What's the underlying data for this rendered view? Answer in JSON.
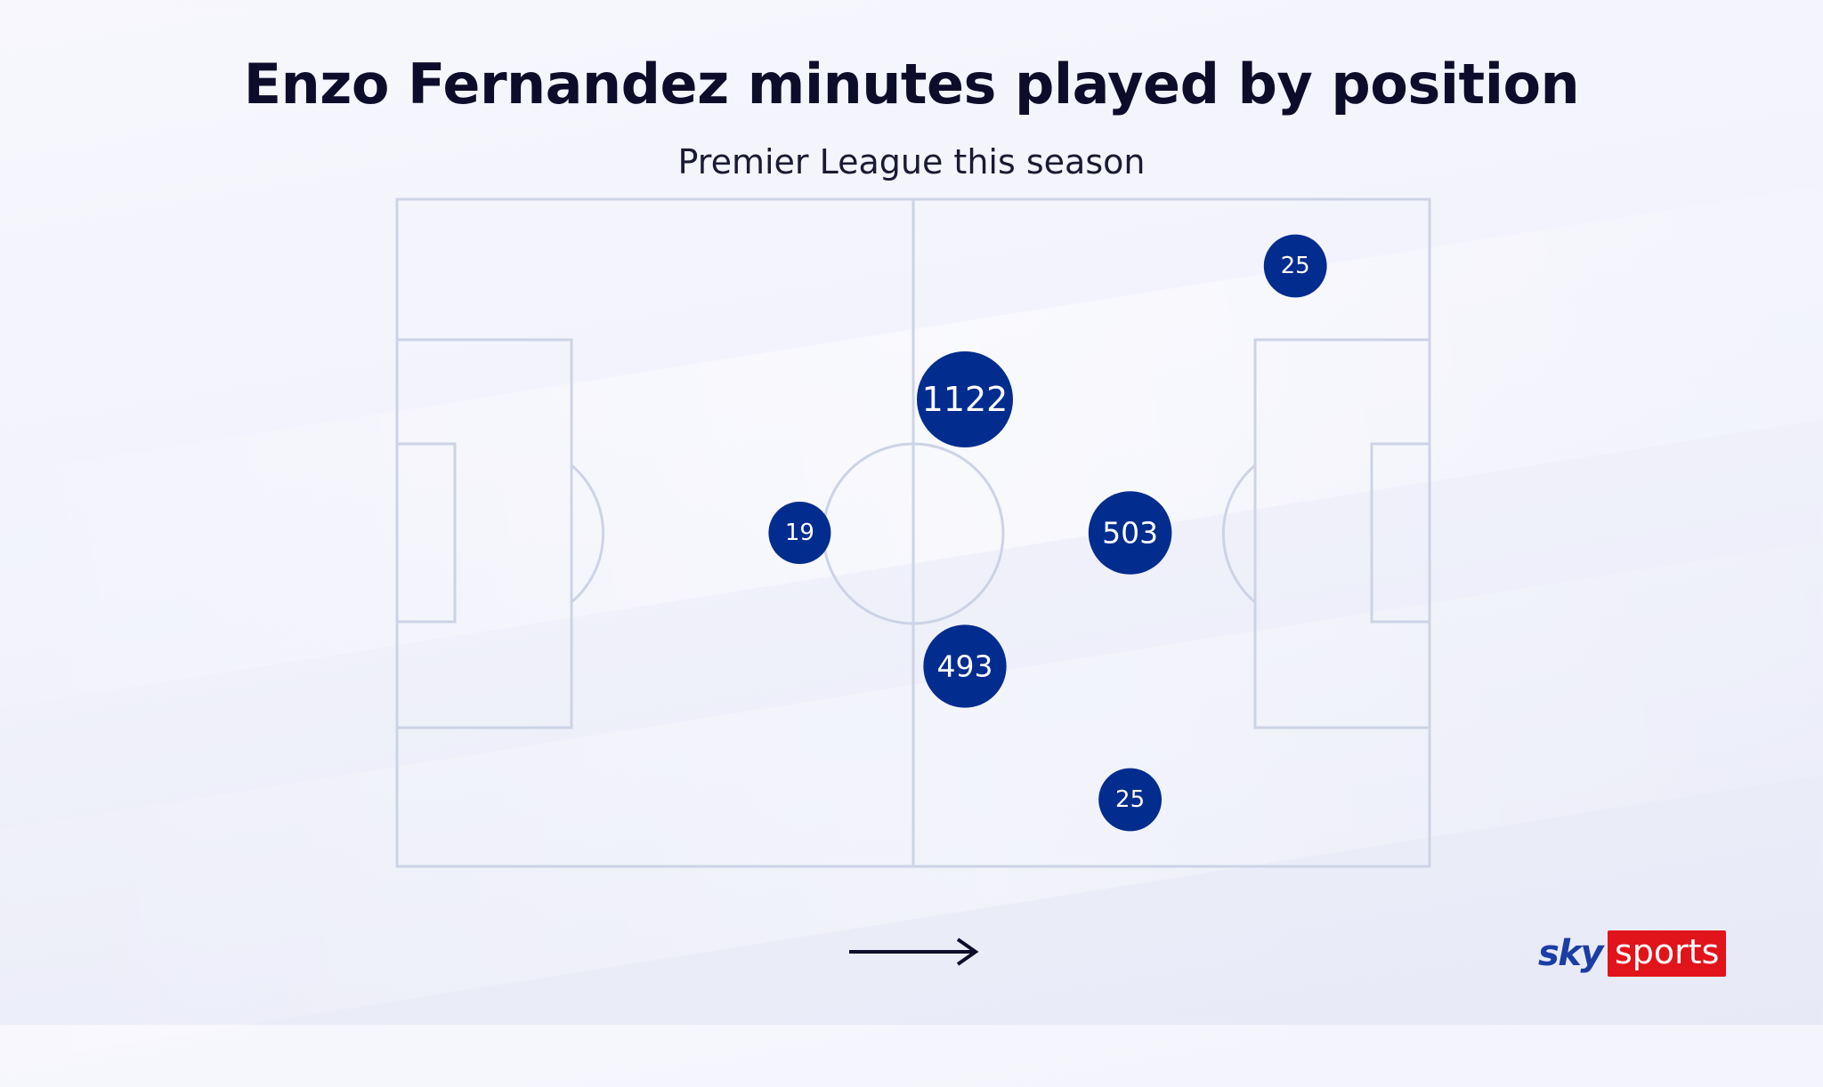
{
  "title": "Enzo Fernandez minutes played by position",
  "subtitle": "Premier League this season",
  "logo": {
    "brand_word": "sky",
    "product_word": "sports",
    "brand_color": "#1a3da6",
    "product_bg_color": "#e1141b"
  },
  "direction_indicator": "arrow-right-icon",
  "colors": {
    "bubble": "#032c8f",
    "bubble_text": "#ffffff",
    "pitch_lines": "#cdd3e6"
  },
  "chart_data": {
    "type": "scatter",
    "title": "Enzo Fernandez minutes played by position",
    "subtitle": "Premier League this season",
    "xlabel": "",
    "ylabel": "",
    "value_unit": "minutes played",
    "positions": [
      {
        "value": 25,
        "label": "25",
        "x": 87,
        "y": 10
      },
      {
        "value": 1122,
        "label": "1122",
        "x": 55,
        "y": 30
      },
      {
        "value": 19,
        "label": "19",
        "x": 39,
        "y": 50
      },
      {
        "value": 503,
        "label": "503",
        "x": 71,
        "y": 50
      },
      {
        "value": 493,
        "label": "493",
        "x": 55,
        "y": 70
      },
      {
        "value": 25,
        "label": "25",
        "x": 71,
        "y": 90
      }
    ],
    "xlim": [
      0,
      100
    ],
    "ylim": [
      0,
      100
    ],
    "grid": false,
    "legend": "none"
  }
}
